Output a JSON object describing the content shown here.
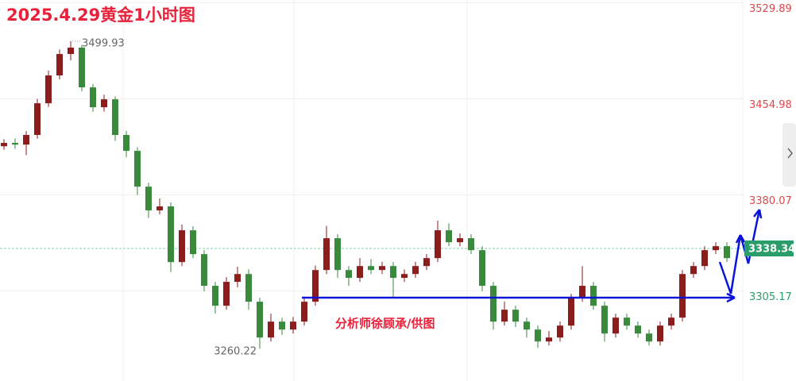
{
  "chart_data": {
    "type": "candlestick",
    "title": "2025.4.29黄金1小时图",
    "credit": "分析师徐顾承/供图",
    "ylim": [
      3235,
      3532
    ],
    "yticks": [
      3529.89,
      3454.98,
      3380.07,
      3305.17
    ],
    "grid": true,
    "last_price": 3338.34,
    "up_color": "#8b1d1d",
    "down_color": "#3a8a3e",
    "above_color": "#e0474c",
    "below_color": "#2a9d6a",
    "high_label_index": 6,
    "low_label_index": 23,
    "ohlc": [
      [
        3418.0,
        3423.5,
        3415.2,
        3420.6
      ],
      [
        3420.6,
        3424.0,
        3416.1,
        3419.3
      ],
      [
        3419.3,
        3429.8,
        3411.0,
        3426.8
      ],
      [
        3426.8,
        3455.0,
        3423.9,
        3451.5
      ],
      [
        3451.5,
        3477.0,
        3448.6,
        3473.2
      ],
      [
        3473.2,
        3493.4,
        3470.1,
        3489.9
      ],
      [
        3489.9,
        3499.93,
        3485.0,
        3494.9
      ],
      [
        3494.9,
        3497.0,
        3460.8,
        3463.9
      ],
      [
        3463.9,
        3466.5,
        3444.8,
        3448.4
      ],
      [
        3448.4,
        3458.2,
        3445.0,
        3454.6
      ],
      [
        3454.6,
        3457.0,
        3422.1,
        3426.8
      ],
      [
        3426.8,
        3430.0,
        3409.5,
        3414.4
      ],
      [
        3414.4,
        3417.3,
        3380.0,
        3386.5
      ],
      [
        3386.5,
        3389.6,
        3362.0,
        3368.0
      ],
      [
        3368.0,
        3377.3,
        3364.9,
        3371.1
      ],
      [
        3371.1,
        3374.2,
        3320.0,
        3327.7
      ],
      [
        3327.7,
        3357.0,
        3324.6,
        3352.5
      ],
      [
        3352.5,
        3355.6,
        3330.8,
        3333.9
      ],
      [
        3333.9,
        3337.0,
        3305.0,
        3309.2
      ],
      [
        3309.2,
        3312.3,
        3287.5,
        3293.7
      ],
      [
        3293.7,
        3316.0,
        3290.6,
        3312.3
      ],
      [
        3312.3,
        3324.0,
        3308.0,
        3318.4
      ],
      [
        3318.4,
        3322.1,
        3290.6,
        3296.8
      ],
      [
        3296.8,
        3299.9,
        3260.22,
        3268.9
      ],
      [
        3268.9,
        3287.5,
        3265.8,
        3281.3
      ],
      [
        3281.3,
        3284.4,
        3271.0,
        3275.1
      ],
      [
        3275.1,
        3285.0,
        3272.0,
        3281.3
      ],
      [
        3281.3,
        3300.0,
        3278.2,
        3296.8
      ],
      [
        3296.8,
        3325.0,
        3293.7,
        3321.5
      ],
      [
        3321.5,
        3356.0,
        3318.4,
        3346.3
      ],
      [
        3346.3,
        3349.4,
        3315.4,
        3321.5
      ],
      [
        3321.5,
        3324.6,
        3309.2,
        3315.4
      ],
      [
        3315.4,
        3330.8,
        3312.3,
        3324.6
      ],
      [
        3324.6,
        3330.0,
        3318.4,
        3321.5
      ],
      [
        3321.5,
        3328.0,
        3318.4,
        3324.6
      ],
      [
        3324.6,
        3327.7,
        3300.0,
        3315.4
      ],
      [
        3315.4,
        3322.0,
        3312.3,
        3318.4
      ],
      [
        3318.4,
        3328.0,
        3315.4,
        3324.6
      ],
      [
        3324.6,
        3334.0,
        3321.5,
        3330.8
      ],
      [
        3330.8,
        3360.0,
        3327.7,
        3352.5
      ],
      [
        3352.5,
        3358.0,
        3340.1,
        3343.2
      ],
      [
        3343.2,
        3350.0,
        3340.1,
        3346.3
      ],
      [
        3346.3,
        3349.4,
        3333.9,
        3337.0
      ],
      [
        3337.0,
        3340.1,
        3305.0,
        3309.2
      ],
      [
        3309.2,
        3312.3,
        3275.1,
        3281.3
      ],
      [
        3281.3,
        3297.0,
        3278.2,
        3290.6
      ],
      [
        3290.6,
        3293.7,
        3277.0,
        3281.3
      ],
      [
        3281.3,
        3284.4,
        3268.9,
        3275.1
      ],
      [
        3275.1,
        3278.2,
        3260.8,
        3265.8
      ],
      [
        3265.8,
        3274.0,
        3262.7,
        3268.9
      ],
      [
        3268.9,
        3281.3,
        3265.8,
        3278.2
      ],
      [
        3278.2,
        3303.0,
        3275.1,
        3299.9
      ],
      [
        3299.9,
        3324.6,
        3296.8,
        3309.2
      ],
      [
        3309.2,
        3312.3,
        3290.6,
        3293.7
      ],
      [
        3293.7,
        3296.8,
        3265.8,
        3272.0
      ],
      [
        3272.0,
        3287.5,
        3268.9,
        3284.4
      ],
      [
        3284.4,
        3287.5,
        3275.1,
        3278.2
      ],
      [
        3278.2,
        3281.3,
        3268.9,
        3272.0
      ],
      [
        3272.0,
        3275.1,
        3262.7,
        3265.8
      ],
      [
        3265.8,
        3281.3,
        3262.7,
        3278.2
      ],
      [
        3278.2,
        3287.5,
        3275.1,
        3284.4
      ],
      [
        3284.4,
        3321.5,
        3281.3,
        3318.4
      ],
      [
        3318.4,
        3327.7,
        3315.4,
        3324.6
      ],
      [
        3324.6,
        3340.1,
        3321.5,
        3337.0
      ],
      [
        3337.0,
        3343.2,
        3333.9,
        3340.1
      ],
      [
        3340.1,
        3343.2,
        3327.7,
        3330.8
      ]
    ]
  }
}
